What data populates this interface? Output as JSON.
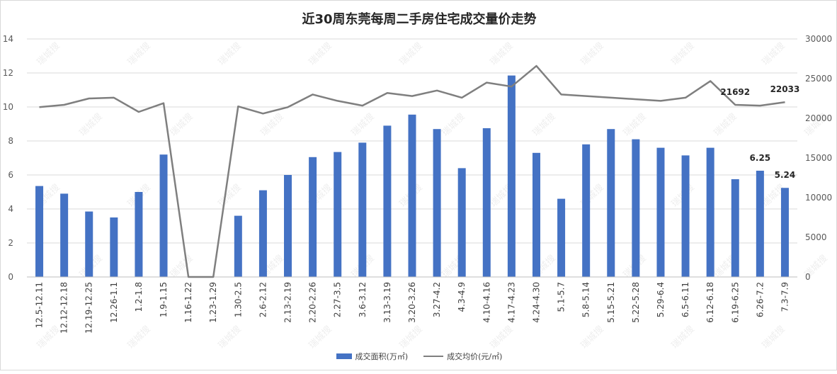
{
  "chart_data": {
    "type": "bar+line",
    "title": "近30周东莞每周二手房住宅成交量价走势",
    "categories": [
      "12.5-12.11",
      "12.12-12.18",
      "12.19-12.25",
      "12.26-1.1",
      "1.2-1.8",
      "1.9-1.15",
      "1.16-1.22",
      "1.23-1.29",
      "1.30-2.5",
      "2.6-2.12",
      "2.13-2.19",
      "2.20-2.26",
      "2.27-3.5",
      "3.6-3.12",
      "3.13-3.19",
      "3.20-3.26",
      "3.27-4.2",
      "4.3-4.9",
      "4.10-4.16",
      "4.17-4.23",
      "4.24-4.30",
      "5.1-5.7",
      "5.8-5.14",
      "5.15-5.21",
      "5.22-5.28",
      "5.29-6.4",
      "6.5-6.11",
      "6.12-6.18",
      "6.19-6.25",
      "6.26-7.2",
      "7.3-7.9"
    ],
    "series": [
      {
        "name": "成交面积(万㎡)",
        "type": "bar",
        "axis": "left",
        "color": "#4472c4",
        "values": [
          5.35,
          4.9,
          3.85,
          3.5,
          5.0,
          7.2,
          0,
          0,
          3.6,
          5.1,
          6.0,
          7.05,
          7.35,
          7.9,
          8.9,
          9.55,
          8.7,
          6.4,
          8.75,
          11.85,
          7.3,
          4.6,
          7.8,
          8.7,
          8.1,
          7.6,
          7.15,
          7.6,
          5.75,
          6.25,
          5.24
        ]
      },
      {
        "name": "成交均价(元/㎡)",
        "type": "line",
        "axis": "right",
        "color": "#7f7f7f",
        "values": [
          21400,
          21700,
          22500,
          22600,
          20800,
          21900,
          0,
          0,
          21500,
          20600,
          21400,
          23000,
          22200,
          21600,
          23200,
          22800,
          23500,
          22600,
          24500,
          24000,
          26600,
          23000,
          22800,
          22600,
          22400,
          22200,
          22600,
          24700,
          21692,
          21600,
          22033
        ]
      }
    ],
    "data_labels": [
      {
        "series": 0,
        "index": 29,
        "text": "6.25"
      },
      {
        "series": 0,
        "index": 30,
        "text": "5.24"
      },
      {
        "series": 1,
        "index": 28,
        "text": "21692"
      },
      {
        "series": 1,
        "index": 30,
        "text": "22033"
      }
    ],
    "y_left": {
      "min": 0,
      "max": 14,
      "ticks": [
        "0",
        "2",
        "4",
        "6",
        "8",
        "10",
        "12",
        "14"
      ]
    },
    "y_right": {
      "min": 0,
      "max": 30000,
      "ticks": [
        "0",
        "5000",
        "10000",
        "15000",
        "20000",
        "25000",
        "30000"
      ]
    },
    "grid": "horizontal",
    "legend_position": "bottom",
    "watermark_text": "瑞城搜"
  }
}
